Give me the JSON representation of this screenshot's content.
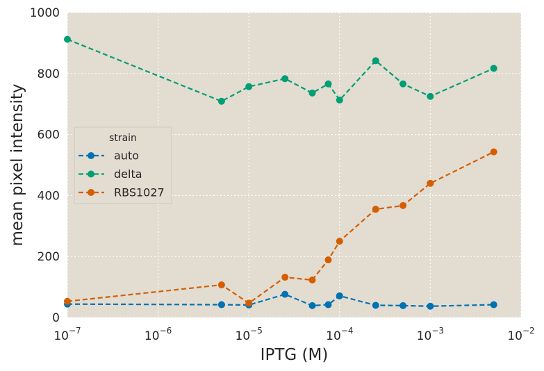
{
  "chart_data": {
    "type": "line",
    "xlabel": "IPTG (M)",
    "ylabel": "mean pixel intensity",
    "xscale": "log",
    "xlim": [
      1e-07,
      0.01
    ],
    "ylim": [
      0,
      1000
    ],
    "grid": true,
    "x_ticks": [
      {
        "value": 1e-07,
        "base": "10",
        "exp": "−7"
      },
      {
        "value": 1e-06,
        "base": "10",
        "exp": "−6"
      },
      {
        "value": 1e-05,
        "base": "10",
        "exp": "−5"
      },
      {
        "value": 0.0001,
        "base": "10",
        "exp": "−4"
      },
      {
        "value": 0.001,
        "base": "10",
        "exp": "−3"
      },
      {
        "value": 0.01,
        "base": "10",
        "exp": "−2"
      }
    ],
    "y_ticks": [
      {
        "value": 0,
        "label": "0"
      },
      {
        "value": 200,
        "label": "200"
      },
      {
        "value": 400,
        "label": "400"
      },
      {
        "value": 600,
        "label": "600"
      },
      {
        "value": 800,
        "label": "800"
      },
      {
        "value": 1000,
        "label": "1000"
      }
    ],
    "legend": {
      "title": "strain",
      "placement": "center-left"
    },
    "x": [
      1e-07,
      5e-06,
      1e-05,
      2.5e-05,
      5e-05,
      7.5e-05,
      0.0001,
      0.00025,
      0.0005,
      0.001,
      0.005
    ],
    "series": [
      {
        "name": "auto",
        "color": "#0072b2",
        "values": [
          44,
          42,
          41,
          76,
          39,
          42,
          71,
          40,
          39,
          37,
          42
        ]
      },
      {
        "name": "delta",
        "color": "#009e73",
        "values": [
          912,
          709,
          757,
          783,
          736,
          766,
          713,
          842,
          766,
          725,
          817
        ]
      },
      {
        "name": "RBS1027",
        "color": "#d55e00",
        "values": [
          53,
          107,
          47,
          132,
          123,
          189,
          250,
          355,
          367,
          440,
          543
        ]
      }
    ]
  }
}
